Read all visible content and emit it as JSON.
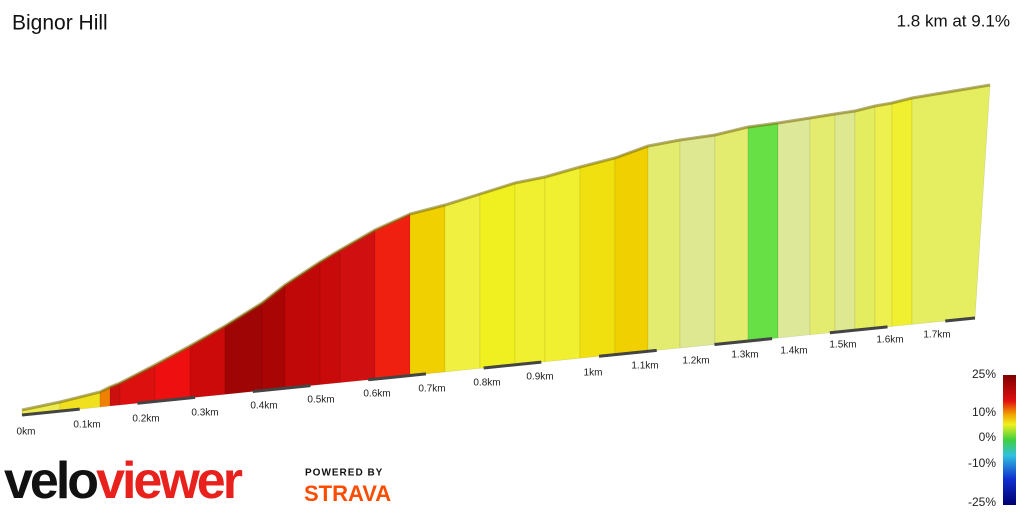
{
  "header": {
    "title": "Bignor Hill",
    "summary": "1.8 km at 9.1%"
  },
  "distance_labels": [
    "0km",
    "0.1km",
    "0.2km",
    "0.3km",
    "0.4km",
    "0.5km",
    "0.6km",
    "0.7km",
    "0.8km",
    "0.9km",
    "1km",
    "1.1km",
    "1.2km",
    "1.3km",
    "1.4km",
    "1.5km",
    "1.6km",
    "1.7km"
  ],
  "gradient_legend": [
    "25%",
    "10%",
    "0%",
    "-10%",
    "-25%"
  ],
  "logo": {
    "brand_first": "velo",
    "brand_second": "viewer",
    "powered": "POWERED BY",
    "partner": "STRAVA"
  }
}
